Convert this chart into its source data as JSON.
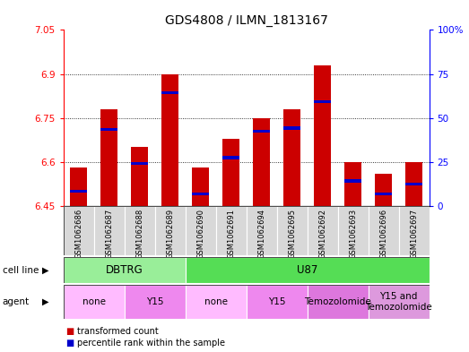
{
  "title": "GDS4808 / ILMN_1813167",
  "samples": [
    "GSM1062686",
    "GSM1062687",
    "GSM1062688",
    "GSM1062689",
    "GSM1062690",
    "GSM1062691",
    "GSM1062694",
    "GSM1062695",
    "GSM1062692",
    "GSM1062693",
    "GSM1062696",
    "GSM1062697"
  ],
  "bar_base": 6.45,
  "transformed_counts": [
    6.58,
    6.78,
    6.65,
    6.9,
    6.58,
    6.68,
    6.75,
    6.78,
    6.93,
    6.6,
    6.56,
    6.6
  ],
  "percentile_values": [
    6.5,
    6.71,
    6.595,
    6.835,
    6.49,
    6.615,
    6.705,
    6.715,
    6.805,
    6.535,
    6.49,
    6.525
  ],
  "ylim_left": [
    6.45,
    7.05
  ],
  "ylim_right": [
    0,
    100
  ],
  "yticks_left": [
    6.45,
    6.6,
    6.75,
    6.9,
    7.05
  ],
  "yticks_right": [
    0,
    25,
    50,
    75,
    100
  ],
  "ytick_labels_left": [
    "6.45",
    "6.6",
    "6.75",
    "6.9",
    "7.05"
  ],
  "ytick_labels_right": [
    "0",
    "25",
    "50",
    "75",
    "100%"
  ],
  "bar_color": "#cc0000",
  "percentile_color": "#0000cc",
  "bg_color": "#d8d8d8",
  "plot_bg": "#ffffff",
  "cell_line_groups": [
    {
      "name": "DBTRG",
      "start": 0,
      "end": 4,
      "color": "#99ee99"
    },
    {
      "name": "U87",
      "start": 4,
      "end": 12,
      "color": "#55dd55"
    }
  ],
  "agent_groups": [
    {
      "name": "none",
      "start": 0,
      "end": 2,
      "color": "#ffbbff"
    },
    {
      "name": "Y15",
      "start": 2,
      "end": 4,
      "color": "#ee88ee"
    },
    {
      "name": "none",
      "start": 4,
      "end": 6,
      "color": "#ffbbff"
    },
    {
      "name": "Y15",
      "start": 6,
      "end": 8,
      "color": "#ee88ee"
    },
    {
      "name": "Temozolomide",
      "start": 8,
      "end": 10,
      "color": "#dd77dd"
    },
    {
      "name": "Y15 and\nTemozolomide",
      "start": 10,
      "end": 12,
      "color": "#dd99dd"
    }
  ],
  "legend_items": [
    {
      "label": "transformed count",
      "color": "#cc0000"
    },
    {
      "label": "percentile rank within the sample",
      "color": "#0000cc"
    }
  ],
  "cell_line_label": "cell line",
  "agent_label": "agent"
}
